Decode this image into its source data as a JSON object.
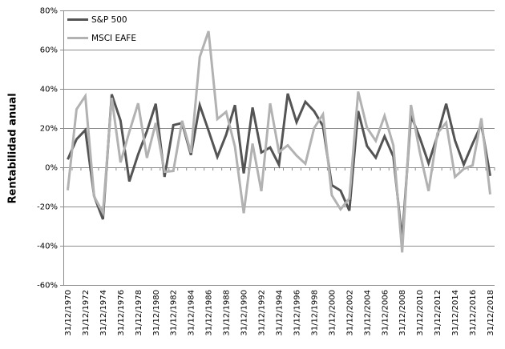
{
  "chart_data": {
    "type": "line",
    "title": "",
    "xlabel": "",
    "ylabel": "Rentabilidad anual",
    "ylim": [
      -60,
      80
    ],
    "ytick_values": [
      80,
      60,
      40,
      20,
      0,
      -20,
      -40,
      -60
    ],
    "ytick_labels": [
      "80%",
      "60%",
      "40%",
      "20%",
      "0%",
      "-20%",
      "-40%",
      "-60%"
    ],
    "grid": true,
    "legend_position": "top-left",
    "x_label_interval": 2,
    "x_tick_labels": [
      "31/12/1970",
      "31/12/1972",
      "31/12/1974",
      "31/12/1976",
      "31/12/1978",
      "31/12/1980",
      "31/12/1982",
      "31/12/1984",
      "31/12/1986",
      "31/12/1988",
      "31/12/1990",
      "31/12/1992",
      "31/12/1994",
      "31/12/1996",
      "31/12/1998",
      "31/12/2000",
      "31/12/2002",
      "31/12/2004",
      "31/12/2006",
      "31/12/2008",
      "31/12/2010",
      "31/12/2012",
      "31/12/2014",
      "31/12/2016",
      "31/12/2018"
    ],
    "years": [
      1970,
      1971,
      1972,
      1973,
      1974,
      1975,
      1976,
      1977,
      1978,
      1979,
      1980,
      1981,
      1982,
      1983,
      1984,
      1985,
      1986,
      1987,
      1988,
      1989,
      1990,
      1991,
      1992,
      1993,
      1994,
      1995,
      1996,
      1997,
      1998,
      1999,
      2000,
      2001,
      2002,
      2003,
      2004,
      2005,
      2006,
      2007,
      2008,
      2009,
      2010,
      2011,
      2012,
      2013,
      2014,
      2015,
      2016,
      2017,
      2018
    ],
    "series": [
      {
        "name": "S&P 500",
        "color": "#545454",
        "values": [
          4.0,
          14.3,
          19.0,
          -14.7,
          -26.5,
          37.2,
          23.8,
          -7.2,
          6.6,
          18.4,
          32.4,
          -4.9,
          21.5,
          22.6,
          6.3,
          31.7,
          18.7,
          5.3,
          16.6,
          31.7,
          -3.1,
          30.5,
          7.6,
          10.1,
          1.3,
          37.6,
          23.0,
          33.4,
          28.6,
          21.0,
          -9.1,
          -11.9,
          -22.1,
          28.7,
          10.9,
          4.9,
          15.8,
          5.5,
          -37.0,
          26.5,
          15.1,
          2.1,
          16.0,
          32.4,
          13.7,
          1.4,
          12.0,
          21.8,
          -4.4
        ]
      },
      {
        "name": "MSCI EAFE",
        "color": "#b2b2b2",
        "values": [
          -11.7,
          29.6,
          36.3,
          -14.9,
          -23.2,
          35.4,
          2.5,
          18.1,
          32.6,
          4.8,
          22.6,
          -2.3,
          -1.9,
          23.7,
          7.4,
          56.2,
          69.4,
          24.6,
          28.3,
          10.5,
          -23.4,
          12.1,
          -12.2,
          32.6,
          7.8,
          11.2,
          6.0,
          1.8,
          20.0,
          27.0,
          -14.2,
          -21.4,
          -15.9,
          38.6,
          20.2,
          13.5,
          26.3,
          11.2,
          -43.4,
          31.8,
          7.8,
          -12.1,
          17.3,
          22.8,
          -4.9,
          -0.8,
          1.0,
          25.0,
          -13.8
        ]
      }
    ],
    "colors": {
      "grid": "#8c8c8c",
      "axis": "#8c8c8c",
      "text": "#000000",
      "background": "#ffffff"
    }
  }
}
